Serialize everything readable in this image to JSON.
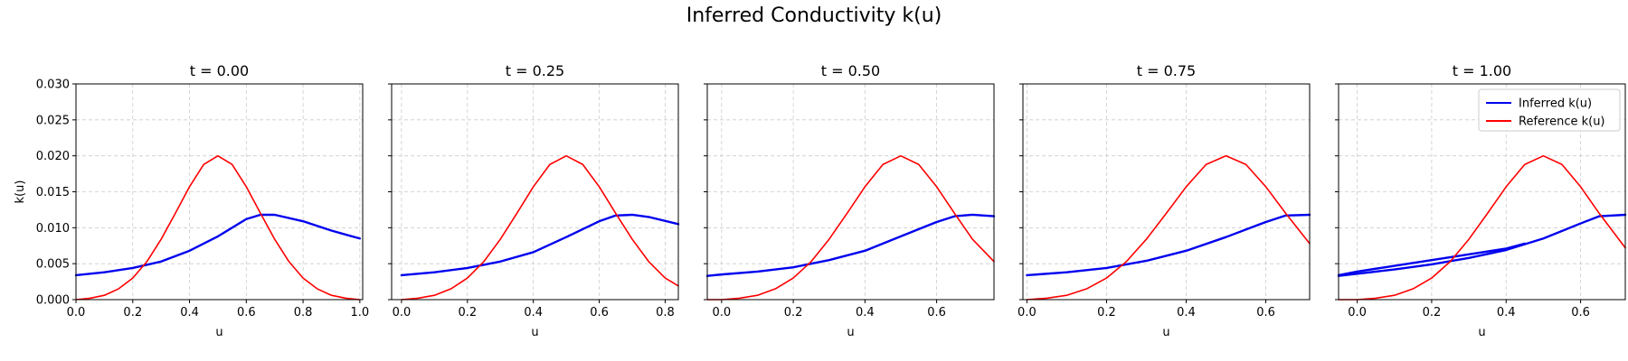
{
  "title": "Inferred Conductivity k(u)",
  "colors": {
    "inferred": "#0000ee",
    "reference": "#ff0000",
    "grid": "#cccccc"
  },
  "legend": {
    "position": "top-right",
    "entries": [
      "Inferred k(u)",
      "Reference k(u)"
    ]
  },
  "chart_data": [
    {
      "type": "line",
      "title": "t = 0.00",
      "xlabel": "u",
      "ylabel": "k(u)",
      "xlim": [
        0.0,
        1.01
      ],
      "ylim": [
        0.0,
        0.03
      ],
      "grid": true,
      "xticks": [
        "0.0",
        "0.2",
        "0.4",
        "0.6",
        "0.8",
        "1.0"
      ],
      "yticks": [
        "0.000",
        "0.005",
        "0.010",
        "0.015",
        "0.020",
        "0.025",
        "0.030"
      ],
      "series": [
        {
          "name": "Inferred k(u)",
          "x": [
            0.0,
            0.1,
            0.2,
            0.3,
            0.4,
            0.5,
            0.6,
            0.65,
            0.7,
            0.8,
            0.9,
            1.0
          ],
          "y": [
            0.0034,
            0.0038,
            0.0044,
            0.0053,
            0.0068,
            0.0088,
            0.0112,
            0.0118,
            0.0118,
            0.0109,
            0.0096,
            0.0085
          ]
        },
        {
          "name": "Reference k(u)",
          "x": [
            0.0,
            0.05,
            0.1,
            0.15,
            0.2,
            0.25,
            0.3,
            0.35,
            0.4,
            0.45,
            0.5,
            0.55,
            0.6,
            0.65,
            0.7,
            0.75,
            0.8,
            0.85,
            0.9,
            0.95,
            1.0
          ],
          "y": [
            0.0,
            0.0002,
            0.0006,
            0.0015,
            0.003,
            0.0053,
            0.0084,
            0.012,
            0.0157,
            0.0188,
            0.02,
            0.0188,
            0.0157,
            0.012,
            0.0084,
            0.0053,
            0.003,
            0.0015,
            0.0006,
            0.0002,
            0.0
          ]
        }
      ]
    },
    {
      "type": "line",
      "title": "t = 0.25",
      "xlabel": "u",
      "ylabel": "",
      "xlim": [
        -0.03,
        0.84
      ],
      "ylim": [
        0.0,
        0.03
      ],
      "grid": true,
      "xticks": [
        "0.0",
        "0.2",
        "0.4",
        "0.6",
        "0.8"
      ],
      "yticks": [
        "",
        "",
        "",
        "",
        "",
        "",
        ""
      ],
      "series": [
        {
          "name": "Inferred k(u)",
          "x": [
            0.0,
            0.1,
            0.2,
            0.3,
            0.4,
            0.5,
            0.6,
            0.65,
            0.7,
            0.75,
            0.84
          ],
          "y": [
            0.0034,
            0.0038,
            0.0044,
            0.0053,
            0.0066,
            0.0087,
            0.0109,
            0.0117,
            0.0118,
            0.0115,
            0.0105
          ]
        },
        {
          "name": "Reference k(u)",
          "x": [
            0.0,
            0.05,
            0.1,
            0.15,
            0.2,
            0.25,
            0.3,
            0.35,
            0.4,
            0.45,
            0.5,
            0.55,
            0.6,
            0.65,
            0.7,
            0.75,
            0.8,
            0.84
          ],
          "y": [
            0.0,
            0.0002,
            0.0006,
            0.0015,
            0.003,
            0.0053,
            0.0084,
            0.012,
            0.0157,
            0.0188,
            0.02,
            0.0188,
            0.0157,
            0.012,
            0.0084,
            0.0053,
            0.003,
            0.0019
          ]
        }
      ]
    },
    {
      "type": "line",
      "title": "t = 0.50",
      "xlabel": "u",
      "ylabel": "",
      "xlim": [
        -0.04,
        0.76
      ],
      "ylim": [
        0.0,
        0.03
      ],
      "grid": true,
      "xticks": [
        "0.0",
        "0.2",
        "0.4",
        "0.6"
      ],
      "yticks": [
        "",
        "",
        "",
        "",
        "",
        "",
        ""
      ],
      "series": [
        {
          "name": "Inferred k(u)",
          "x": [
            -0.04,
            0.0,
            0.1,
            0.2,
            0.3,
            0.4,
            0.5,
            0.6,
            0.65,
            0.7,
            0.76
          ],
          "y": [
            0.0033,
            0.0035,
            0.0039,
            0.0045,
            0.0055,
            0.0068,
            0.0088,
            0.0108,
            0.0116,
            0.0118,
            0.0116
          ]
        },
        {
          "name": "Reference k(u)",
          "x": [
            -0.04,
            0.0,
            0.05,
            0.1,
            0.15,
            0.2,
            0.25,
            0.3,
            0.35,
            0.4,
            0.45,
            0.5,
            0.55,
            0.6,
            0.65,
            0.7,
            0.76
          ],
          "y": [
            0.0,
            0.0,
            0.0002,
            0.0006,
            0.0015,
            0.003,
            0.0053,
            0.0084,
            0.012,
            0.0157,
            0.0188,
            0.02,
            0.0188,
            0.0157,
            0.012,
            0.0084,
            0.0053
          ]
        }
      ]
    },
    {
      "type": "line",
      "title": "t = 0.75",
      "xlabel": "u",
      "ylabel": "",
      "xlim": [
        -0.01,
        0.71
      ],
      "ylim": [
        0.0,
        0.03
      ],
      "grid": true,
      "xticks": [
        "0.0",
        "0.2",
        "0.4",
        "0.6"
      ],
      "yticks": [
        "",
        "",
        "",
        "",
        "",
        "",
        ""
      ],
      "series": [
        {
          "name": "Inferred k(u)",
          "x": [
            0.0,
            0.1,
            0.2,
            0.3,
            0.4,
            0.5,
            0.6,
            0.65,
            0.71
          ],
          "y": [
            0.0034,
            0.0038,
            0.0044,
            0.0054,
            0.0068,
            0.0087,
            0.0108,
            0.0117,
            0.0118
          ]
        },
        {
          "name": "Reference k(u)",
          "x": [
            0.0,
            0.05,
            0.1,
            0.15,
            0.2,
            0.25,
            0.3,
            0.35,
            0.4,
            0.45,
            0.5,
            0.55,
            0.6,
            0.65,
            0.71
          ],
          "y": [
            0.0,
            0.0002,
            0.0006,
            0.0015,
            0.003,
            0.0053,
            0.0084,
            0.012,
            0.0157,
            0.0188,
            0.02,
            0.0188,
            0.0157,
            0.012,
            0.0078
          ]
        }
      ]
    },
    {
      "type": "line",
      "title": "t = 1.00",
      "xlabel": "u",
      "ylabel": "",
      "xlim": [
        -0.05,
        0.72
      ],
      "ylim": [
        0.0,
        0.03
      ],
      "grid": true,
      "xticks": [
        "0.0",
        "0.2",
        "0.4",
        "0.6"
      ],
      "yticks": [
        "",
        "",
        "",
        "",
        "",
        "",
        ""
      ],
      "series": [
        {
          "name": "Inferred k(u)",
          "x": [
            -0.05,
            0.0,
            0.1,
            0.2,
            0.3,
            0.4,
            0.5,
            0.6,
            0.65,
            0.72
          ],
          "y": [
            0.0033,
            0.0036,
            0.0042,
            0.0049,
            0.0058,
            0.0069,
            0.0085,
            0.0106,
            0.0116,
            0.0118
          ]
        },
        {
          "name": "Inferred k(u)",
          "x": [
            -0.05,
            0.0,
            0.1,
            0.2,
            0.3,
            0.4,
            0.45
          ],
          "y": [
            0.0034,
            0.0039,
            0.0047,
            0.0055,
            0.0063,
            0.0071,
            0.0078
          ]
        },
        {
          "name": "Reference k(u)",
          "x": [
            -0.05,
            0.0,
            0.05,
            0.1,
            0.15,
            0.2,
            0.25,
            0.3,
            0.35,
            0.4,
            0.45,
            0.5,
            0.55,
            0.6,
            0.65,
            0.72
          ],
          "y": [
            0.0,
            0.0,
            0.0002,
            0.0006,
            0.0015,
            0.003,
            0.0053,
            0.0084,
            0.012,
            0.0157,
            0.0188,
            0.02,
            0.0188,
            0.0157,
            0.012,
            0.0072
          ]
        }
      ]
    }
  ]
}
